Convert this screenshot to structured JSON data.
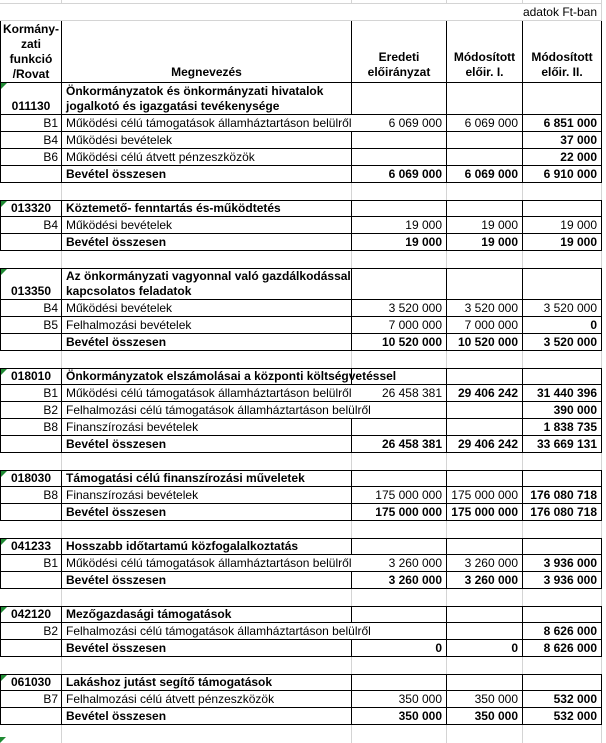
{
  "meta": {
    "unit_note": "adatok Ft-ban"
  },
  "colors": {
    "grid": "#d4d4d4",
    "table_border": "#000000",
    "marker_green": "#1f8a33"
  },
  "table": {
    "columns": {
      "col_a_lines": [
        "Kormány-",
        "zati",
        "funkció",
        "/Rovat"
      ],
      "megnevezes": "Megnevezés",
      "eredeti_lines": [
        "Eredeti",
        "előirányzat"
      ],
      "mod1_lines": [
        "Módosított",
        "előir. I."
      ],
      "mod2_lines": [
        "Módosított",
        "előir. II."
      ]
    },
    "total_label": "Bevétel összesen",
    "sections": [
      {
        "code": "011130",
        "title_lines": [
          "Önkormányzatok és önkormányzati hivatalok",
          "jogalkotó és igazgatási tevékenysége"
        ],
        "rows": [
          {
            "code": "B1",
            "label": "Működési célú támogatások államháztartáson belülről",
            "overflow": true,
            "values": [
              "6 069 000",
              "6 069 000",
              "6 851 000"
            ],
            "bold": [
              false,
              false,
              true
            ]
          },
          {
            "code": "B4",
            "label": "Működési bevételek",
            "overflow": false,
            "values": [
              "",
              "",
              "37 000"
            ],
            "bold": [
              false,
              false,
              true
            ]
          },
          {
            "code": "B6",
            "label": "Működési célú átvett pénzeszközök",
            "overflow": false,
            "values": [
              "",
              "",
              "22 000"
            ],
            "bold": [
              false,
              false,
              true
            ]
          }
        ],
        "total": {
          "values": [
            "6 069 000",
            "6 069 000",
            "6 910 000"
          ]
        }
      },
      {
        "code": "013320",
        "title_lines": [
          "Köztemető- fenntartás és-működtetés"
        ],
        "rows": [
          {
            "code": "B4",
            "label": "Működési bevételek",
            "overflow": false,
            "values": [
              "19 000",
              "19 000",
              "19 000"
            ],
            "bold": [
              false,
              false,
              false
            ]
          }
        ],
        "total": {
          "values": [
            "19 000",
            "19 000",
            "19 000"
          ]
        }
      },
      {
        "code": "013350",
        "title_lines": [
          "Az önkormányzati vagyonnal való gazdálkodással",
          "kapcsolatos feladatok"
        ],
        "rows": [
          {
            "code": "B4",
            "label": "Működési bevételek",
            "overflow": false,
            "values": [
              "3 520 000",
              "3 520 000",
              "3 520 000"
            ],
            "bold": [
              false,
              false,
              false
            ]
          },
          {
            "code": "B5",
            "label": "Felhalmozási bevételek",
            "overflow": false,
            "values": [
              "7 000 000",
              "7 000 000",
              "0"
            ],
            "bold": [
              false,
              false,
              true
            ]
          }
        ],
        "total": {
          "values": [
            "10 520 000",
            "10 520 000",
            "3 520 000"
          ]
        }
      },
      {
        "code": "018010",
        "title_lines": [
          "Önkormányzatok elszámolásai a központi költségvetéssel"
        ],
        "rows": [
          {
            "code": "B1",
            "label": "Működési célú támogatások államháztartáson belülről",
            "overflow": true,
            "values": [
              "26 458 381",
              "29 406 242",
              "31 440 396"
            ],
            "bold": [
              false,
              true,
              true
            ]
          },
          {
            "code": "B2",
            "label": "Felhalmozási célú támogatások államháztartáson belülről",
            "overflow": true,
            "values": [
              "",
              "",
              "390 000"
            ],
            "bold": [
              false,
              false,
              true
            ]
          },
          {
            "code": "B8",
            "label": "Finanszírozási bevételek",
            "overflow": false,
            "values": [
              "",
              "",
              "1 838 735"
            ],
            "bold": [
              false,
              false,
              true
            ]
          }
        ],
        "total": {
          "values": [
            "26 458 381",
            "29 406 242",
            "33 669 131"
          ]
        }
      },
      {
        "code": "018030",
        "title_lines": [
          "Támogatási célú finanszírozási műveletek"
        ],
        "rows": [
          {
            "code": "B8",
            "label": "Finanszírozási bevételek",
            "overflow": false,
            "values": [
              "175 000 000",
              "175 000 000",
              "176 080 718"
            ],
            "bold": [
              false,
              false,
              true
            ]
          }
        ],
        "total": {
          "values": [
            "175 000 000",
            "175 000 000",
            "176 080 718"
          ]
        }
      },
      {
        "code": "041233",
        "title_lines": [
          "Hosszabb időtartamú közfogalalkoztatás"
        ],
        "rows": [
          {
            "code": "B1",
            "label": "Működési célú támogatások államháztartáson belülről",
            "overflow": true,
            "values": [
              "3 260 000",
              "3 260 000",
              "3 936 000"
            ],
            "bold": [
              false,
              false,
              true
            ]
          }
        ],
        "total": {
          "values": [
            "3 260 000",
            "3 260 000",
            "3 936 000"
          ]
        }
      },
      {
        "code": "042120",
        "title_lines": [
          "Mezőgazdasági támogatások"
        ],
        "rows": [
          {
            "code": "B2",
            "label": "Felhalmozási célú támogatások államháztartáson belülről",
            "overflow": true,
            "values": [
              "",
              "",
              "8 626 000"
            ],
            "bold": [
              false,
              false,
              true
            ]
          }
        ],
        "total": {
          "values": [
            "0",
            "0",
            "8 626 000"
          ]
        }
      },
      {
        "code": "061030",
        "title_lines": [
          "Lakáshoz jutást segítő támogatások"
        ],
        "rows": [
          {
            "code": "B7",
            "label": "Felhalmozási célú átvett pénzeszközök",
            "overflow": false,
            "values": [
              "350 000",
              "350 000",
              "532 000"
            ],
            "bold": [
              false,
              false,
              true
            ]
          }
        ],
        "total": {
          "values": [
            "350 000",
            "350 000",
            "532 000"
          ]
        }
      }
    ]
  }
}
